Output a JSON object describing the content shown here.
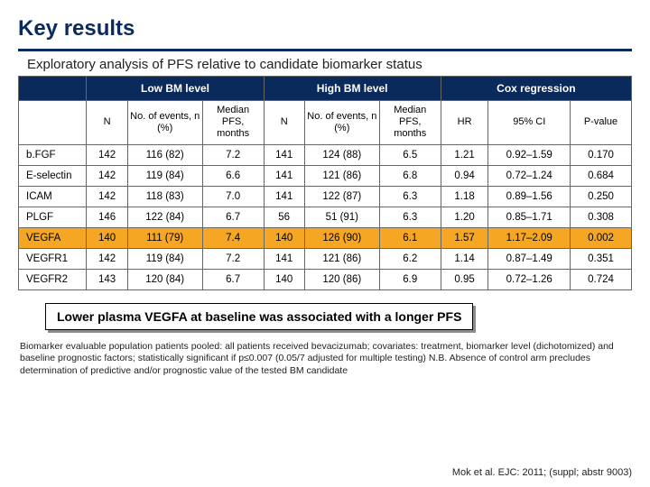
{
  "title": "Key results",
  "subtitle": "Exploratory analysis of PFS relative to candidate biomarker status",
  "table": {
    "group_headers": [
      "Low BM level",
      "High BM level",
      "Cox regression"
    ],
    "sub_headers": {
      "n": "N",
      "events": "No. of events, n (%)",
      "median": "Median PFS, months",
      "hr": "HR",
      "ci": "95% CI",
      "p": "P-value"
    },
    "rows": [
      {
        "label": "b.FGF",
        "low_n": "142",
        "low_ev": "116 (82)",
        "low_med": "7.2",
        "high_n": "141",
        "high_ev": "124 (88)",
        "high_med": "6.5",
        "hr": "1.21",
        "ci": "0.92–1.59",
        "p": "0.170",
        "highlight": false
      },
      {
        "label": "E-selectin",
        "low_n": "142",
        "low_ev": "119 (84)",
        "low_med": "6.6",
        "high_n": "141",
        "high_ev": "121 (86)",
        "high_med": "6.8",
        "hr": "0.94",
        "ci": "0.72–1.24",
        "p": "0.684",
        "highlight": false
      },
      {
        "label": "ICAM",
        "low_n": "142",
        "low_ev": "118 (83)",
        "low_med": "7.0",
        "high_n": "141",
        "high_ev": "122 (87)",
        "high_med": "6.3",
        "hr": "1.18",
        "ci": "0.89–1.56",
        "p": "0.250",
        "highlight": false
      },
      {
        "label": "PLGF",
        "low_n": "146",
        "low_ev": "122 (84)",
        "low_med": "6.7",
        "high_n": "56",
        "high_ev": "51 (91)",
        "high_med": "6.3",
        "hr": "1.20",
        "ci": "0.85–1.71",
        "p": "0.308",
        "highlight": false
      },
      {
        "label": "VEGFA",
        "low_n": "140",
        "low_ev": "111 (79)",
        "low_med": "7.4",
        "high_n": "140",
        "high_ev": "126 (90)",
        "high_med": "6.1",
        "hr": "1.57",
        "ci": "1.17–2.09",
        "p": "0.002",
        "highlight": true
      },
      {
        "label": "VEGFR1",
        "low_n": "142",
        "low_ev": "119 (84)",
        "low_med": "7.2",
        "high_n": "141",
        "high_ev": "121 (86)",
        "high_med": "6.2",
        "hr": "1.14",
        "ci": "0.87–1.49",
        "p": "0.351",
        "highlight": false
      },
      {
        "label": "VEGFR2",
        "low_n": "143",
        "low_ev": "120 (84)",
        "low_med": "6.7",
        "high_n": "140",
        "high_ev": "120 (86)",
        "high_med": "6.9",
        "hr": "0.95",
        "ci": "0.72–1.26",
        "p": "0.724",
        "highlight": false
      }
    ]
  },
  "callout": "Lower plasma VEGFA at baseline was associated with a longer PFS",
  "footnote": "Biomarker evaluable population patients pooled: all patients received bevacizumab; covariates: treatment, biomarker level (dichotomized) and baseline prognostic factors; statistically significant if p≤0.007 (0.05/7 adjusted for multiple testing) N.B. Absence of control arm precludes determination of predictive and/or prognostic value of the tested BM candidate",
  "citation": "Mok et al. EJC: 2011; (suppl; abstr 9003)",
  "colors": {
    "heading": "#0a2a5c",
    "highlight": "#f5a623",
    "background": "#ffffff"
  }
}
